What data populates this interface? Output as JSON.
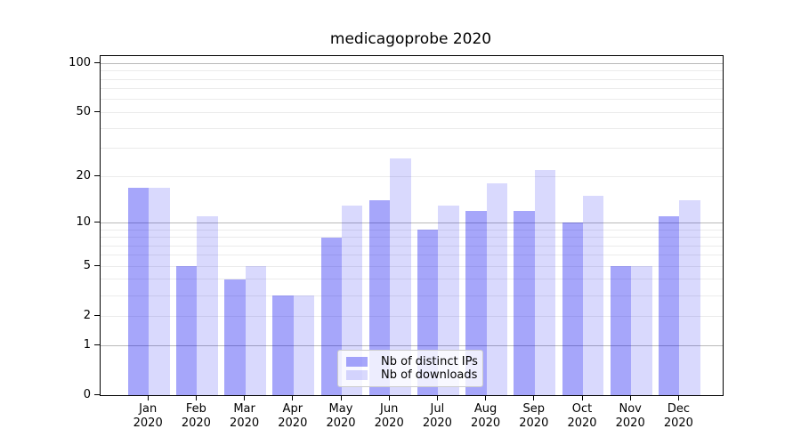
{
  "title": "medicagoprobe 2020",
  "chart_data": {
    "type": "bar",
    "title": "medicagoprobe 2020",
    "categories": [
      "Jan",
      "Feb",
      "Mar",
      "Apr",
      "May",
      "Jun",
      "Jul",
      "Aug",
      "Sep",
      "Oct",
      "Nov",
      "Dec"
    ],
    "category_year": "2020",
    "series": [
      {
        "name": "Nb of distinct IPs",
        "color": "rgba(0,0,240,0.35)",
        "values": [
          17,
          5,
          4,
          3,
          8,
          14,
          9,
          12,
          12,
          10,
          5,
          11
        ]
      },
      {
        "name": "Nb of downloads",
        "color": "rgba(0,0,240,0.15)",
        "values": [
          17,
          11,
          5,
          3,
          13,
          26,
          13,
          18,
          22,
          15,
          5,
          14
        ]
      }
    ],
    "xlabel": "",
    "ylabel": "",
    "yscale": "log1p",
    "ylim": [
      0,
      111
    ],
    "yticks": [
      0,
      1,
      2,
      5,
      10,
      20,
      50,
      100
    ],
    "major_gridlines": [
      1,
      10,
      100
    ],
    "minor_gridlines": [
      2,
      3,
      4,
      5,
      6,
      7,
      8,
      9,
      20,
      30,
      40,
      50,
      60,
      70,
      80,
      90
    ],
    "grid": true,
    "legend_position": "lower center",
    "colors": {
      "major_grid": "#b9b9b9",
      "minor_grid": "#ebebeb",
      "axis": "#000000",
      "text": "#000000",
      "legend_border": "#cccccc",
      "legend_background": "rgba(255,255,255,0.8)"
    }
  }
}
